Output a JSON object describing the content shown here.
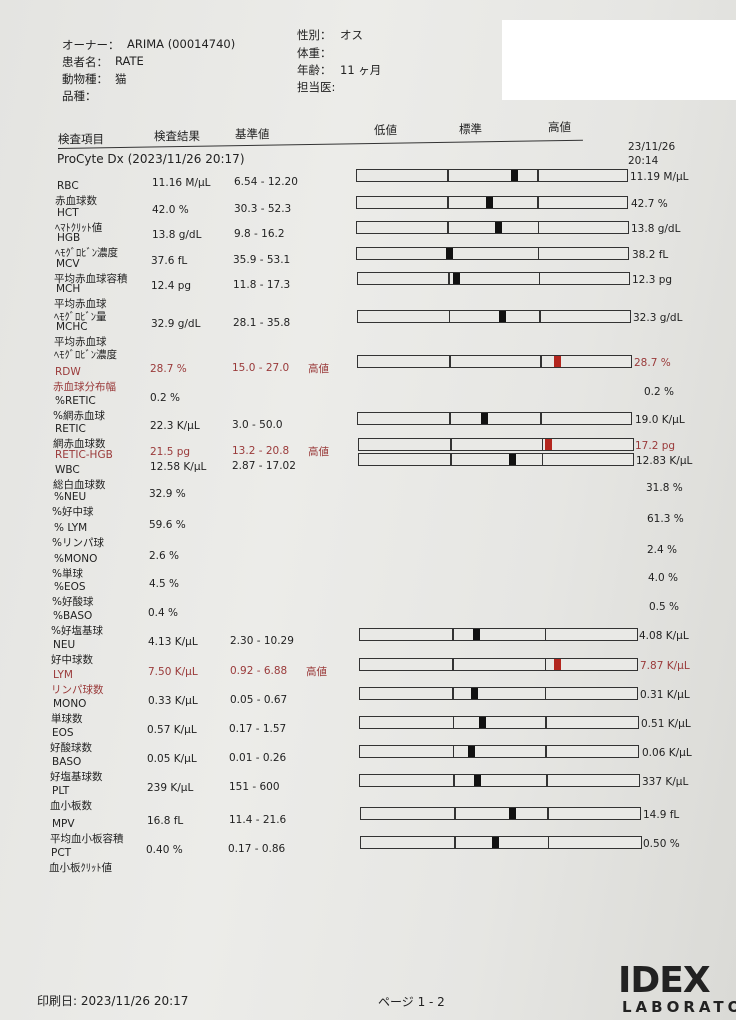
{
  "patient": {
    "owner_label": "オーナー：",
    "owner": "ARIMA (00014740)",
    "name_label": "患者名：",
    "name": "RATE",
    "species_label": "動物種：",
    "species": "猫",
    "breed_label": "品種：",
    "sex_label": "性別：",
    "sex": "オス",
    "weight_label": "体重：",
    "age_label": "年齢：",
    "age": "11 ヶ月",
    "vet_label": "担当医:"
  },
  "columns": {
    "item": "検査項目",
    "result": "検査結果",
    "range": "基準値",
    "low": "低値",
    "normal": "標準",
    "high": "高値"
  },
  "section": "ProCyte Dx (2023/11/26 20:17)",
  "previous": {
    "date": "23/11/26",
    "time": "20:14"
  },
  "colors": {
    "high_flag": "#9a3a3a",
    "high_marker": "#b3261e"
  },
  "items": [
    {
      "code": "RBC",
      "jp": "赤血球数",
      "result": "11.16 M/μL",
      "range": "6.54 - 12.20",
      "flag": "",
      "prev": "11.19 M/μL",
      "level": 0.58
    },
    {
      "code": "HCT",
      "jp": "ﾍﾏﾄｸﾘｯﾄ値",
      "result": "42.0 %",
      "range": "30.3 - 52.3",
      "flag": "",
      "prev": "42.7 %",
      "level": 0.49
    },
    {
      "code": "HGB",
      "jp": "ﾍﾓｸﾞﾛﾋﾞﾝ濃度",
      "result": "13.8 g/dL",
      "range": "9.8 - 16.2",
      "flag": "",
      "prev": "13.8 g/dL",
      "level": 0.52
    },
    {
      "code": "MCV",
      "jp": "平均赤血球容積",
      "result": "37.6 fL",
      "range": "35.9 - 53.1",
      "flag": "",
      "prev": "38.2 fL",
      "level": 0.34
    },
    {
      "code": "MCH",
      "jp": "平均赤血球",
      "jp2": "ﾍﾓｸﾞﾛﾋﾞﾝ量",
      "result": "12.4 pg",
      "range": "11.8 - 17.3",
      "flag": "",
      "prev": "12.3 pg",
      "level": 0.36
    },
    {
      "code": "MCHC",
      "jp": "平均赤血球",
      "jp2": "ﾍﾓｸﾞﾛﾋﾞﾝ濃度",
      "result": "32.9 g/dL",
      "range": "28.1 - 35.8",
      "flag": "",
      "prev": "32.3 g/dL",
      "level": 0.53
    },
    {
      "code": "RDW",
      "jp": "赤血球分布幅",
      "result": "28.7 %",
      "range": "15.0 - 27.0",
      "flag": "高値",
      "prev": "28.7 %",
      "level": 0.73
    },
    {
      "code": "%RETIC",
      "jp": "%網赤血球",
      "result": "0.2 %",
      "range": "",
      "flag": "",
      "prev": "0.2 %"
    },
    {
      "code": "RETIC",
      "jp": "網赤血球数",
      "result": "22.3 K/μL",
      "range": "3.0 - 50.0",
      "flag": "",
      "prev": "19.0 K/μL",
      "level": 0.46
    },
    {
      "code": "RETIC-HGB",
      "jp": "",
      "result": "21.5 pg",
      "range": "13.2 - 20.8",
      "flag": "高値",
      "prev": "17.2 pg",
      "level": 0.69
    },
    {
      "code": "WBC",
      "jp": "総白血球数",
      "result": "12.58 K/μL",
      "range": "2.87 - 17.02",
      "flag": "",
      "prev": "12.83 K/μL",
      "level": 0.56
    },
    {
      "code": "%NEU",
      "jp": "%好中球",
      "result": "32.9 %",
      "range": "",
      "flag": "",
      "prev": "31.8 %"
    },
    {
      "code": "% LYM",
      "jp": "%リンパ球",
      "result": "59.6 %",
      "range": "",
      "flag": "",
      "prev": "61.3 %"
    },
    {
      "code": "%MONO",
      "jp": "%単球",
      "result": "2.6 %",
      "range": "",
      "flag": "",
      "prev": "2.4 %"
    },
    {
      "code": "%EOS",
      "jp": "%好酸球",
      "result": "4.5 %",
      "range": "",
      "flag": "",
      "prev": "4.0 %"
    },
    {
      "code": "%BASO",
      "jp": "%好塩基球",
      "result": "0.4 %",
      "range": "",
      "flag": "",
      "prev": "0.5 %"
    },
    {
      "code": "NEU",
      "jp": "好中球数",
      "result": "4.13 K/μL",
      "range": "2.30 - 10.29",
      "flag": "",
      "prev": "4.08 K/μL",
      "level": 0.42
    },
    {
      "code": "LYM",
      "jp": "リンパ球数",
      "result": "7.50 K/μL",
      "range": "0.92 - 6.88",
      "flag": "高値",
      "prev": "7.87 K/μL",
      "level": 0.71
    },
    {
      "code": "MONO",
      "jp": "単球数",
      "result": "0.33 K/μL",
      "range": "0.05 - 0.67",
      "flag": "",
      "prev": "0.31 K/μL",
      "level": 0.41
    },
    {
      "code": "EOS",
      "jp": "好酸球数",
      "result": "0.57 K/μL",
      "range": "0.17 - 1.57",
      "flag": "",
      "prev": "0.51 K/μL",
      "level": 0.44
    },
    {
      "code": "BASO",
      "jp": "好塩基球数",
      "result": "0.05 K/μL",
      "range": "0.01 - 0.26",
      "flag": "",
      "prev": "0.06 K/μL",
      "level": 0.4
    },
    {
      "code": "PLT",
      "jp": "血小板数",
      "result": "239 K/μL",
      "range": "151 - 600",
      "flag": "",
      "prev": "337 K/μL",
      "level": 0.42
    },
    {
      "code": "MPV",
      "jp": "平均血小板容積",
      "result": "16.8 fL",
      "range": "11.4 - 21.6",
      "flag": "",
      "prev": "14.9 fL",
      "level": 0.54
    },
    {
      "code": "PCT",
      "jp": "血小板ｸﾘｯﾄ値",
      "result": "0.40 %",
      "range": "0.17 - 0.86",
      "flag": "",
      "prev": "0.50 %",
      "level": 0.48
    }
  ],
  "footer": {
    "print_date": "印刷日: 2023/11/26 20:17",
    "page": "ページ 1 - 2"
  },
  "logo": {
    "text": "IDEX",
    "sub": "LABORATOR"
  }
}
